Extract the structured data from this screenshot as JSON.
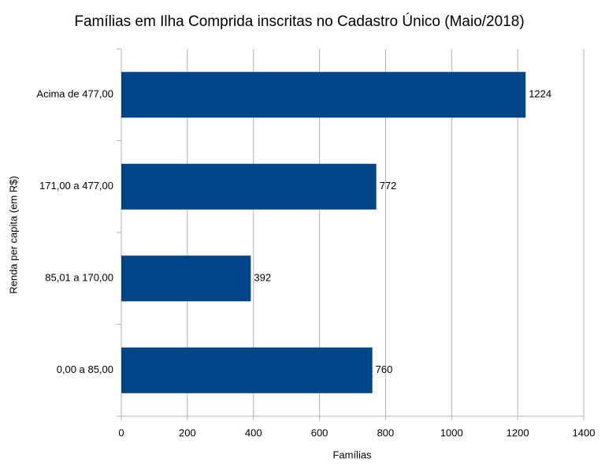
{
  "chart_data": {
    "type": "bar",
    "orientation": "horizontal",
    "title": "Famílias em Ilha Comprida inscritas no Cadastro Único (Maio/2018)",
    "x_label": "Famílias",
    "y_label": "Renda per capita (em R$)",
    "categories": [
      "Acima de 477,00",
      "171,00 a 477,00",
      "85,01 a 170,00",
      "0,00 a 85,00"
    ],
    "values": [
      1224,
      772,
      392,
      760
    ],
    "color": "#004586",
    "xlim": [
      0,
      1400
    ],
    "xticks": [
      0,
      200,
      400,
      600,
      800,
      1000,
      1200,
      1400
    ],
    "grid": true
  }
}
